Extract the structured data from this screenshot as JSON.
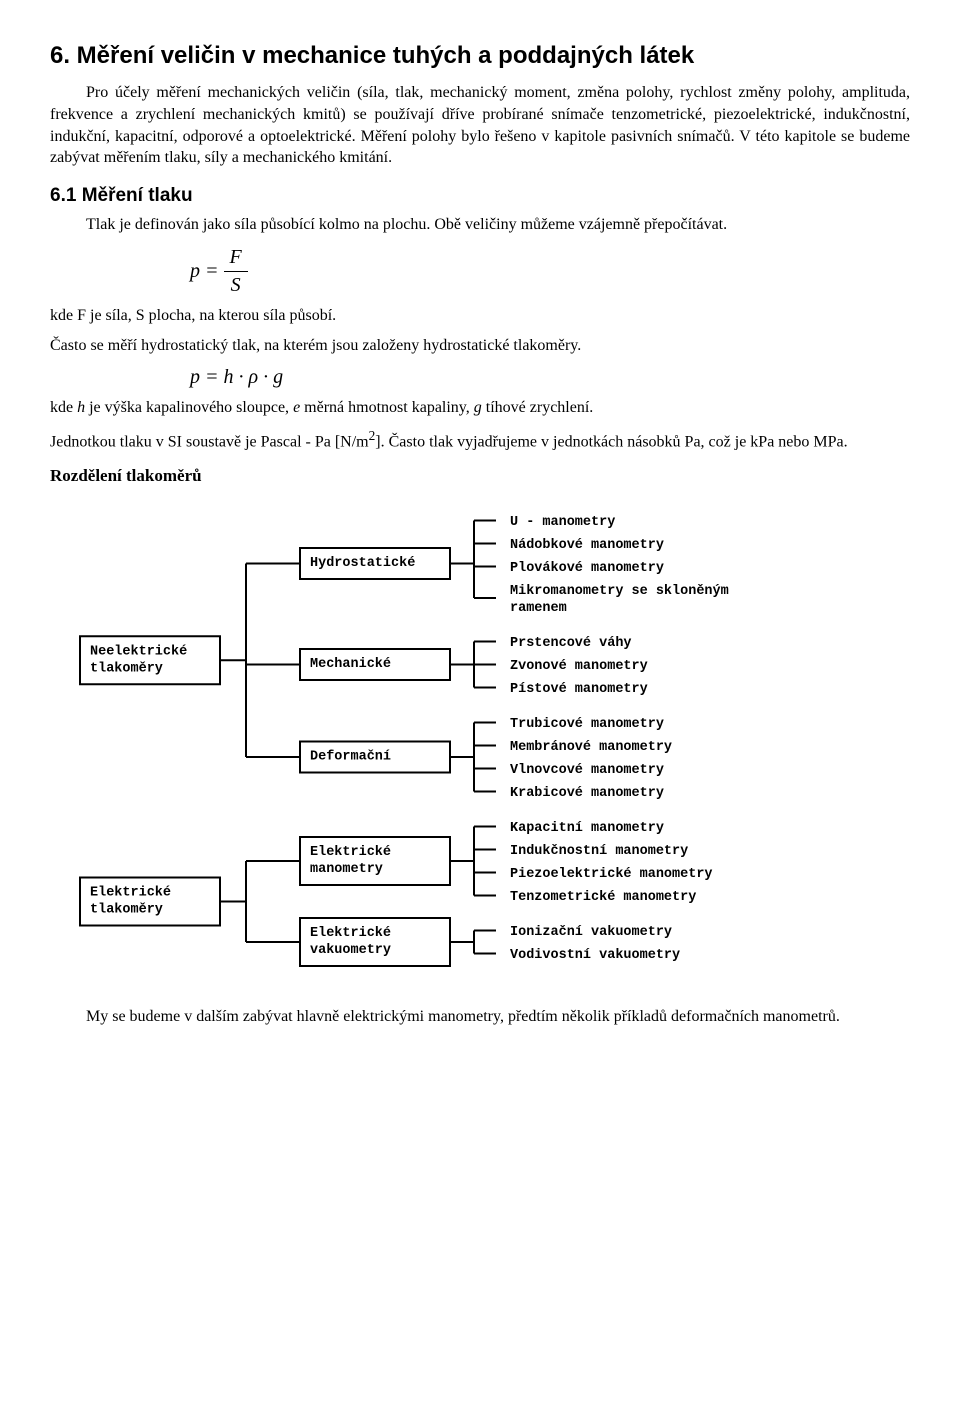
{
  "title": "6. Měření veličin v mechanice tuhých a poddajných látek",
  "para1": "Pro účely měření mechanických veličin (síla, tlak, mechanický moment, změna polohy, rychlost změny polohy, amplituda, frekvence a zrychlení mechanických kmitů) se používají dříve probírané snímače tenzometrické, piezoelektrické, indukčnostní, indukční, kapacitní, odporové a optoelektrické. Měření polohy bylo řešeno v kapitole pasivních snímačů. V této kapitole se budeme zabývat měřením tlaku, síly a mechanického kmitání.",
  "sec61": "6.1 Měření tlaku",
  "para2": "Tlak je definován jako síla působící kolmo na plochu. Obě veličiny můžeme vzájemně přepočítávat.",
  "formula1_html": "<span style='display:inline-block;vertical-align:middle;'>p</span> <span style='display:inline-block;vertical-align:middle;'>=</span> <span style='display:inline-block;vertical-align:middle;text-align:center;'><span style='display:block;border-bottom:1.4px solid #000;padding:0 6px;'>F</span><span style='display:block;padding:0 6px;'>S</span></span>",
  "para3": "kde F je síla, S plocha, na kterou síla působí.",
  "para4": "Často se měří hydrostatický tlak, na kterém jsou založeny hydrostatické tlakoměry.",
  "formula2": "p = h · ρ · g",
  "para5_pre": "kde ",
  "para5_h": "h",
  "para5_mid1": " je výška kapalinového sloupce, ",
  "para5_e": "e",
  "para5_mid2": " měrná hmotnost kapaliny, ",
  "para5_g": "g",
  "para5_end": " tíhové zrychlení.",
  "para6_pre": "Jednotkou tlaku v SI soustavě je Pascal - Pa  [N/m",
  "para6_sup": "2",
  "para6_post": "]. Často tlak vyjadřujeme v jednotkách násobků Pa, což je kPa nebo MPa.",
  "h3": "Rozdělení tlakoměrů",
  "para7": "My se budeme v dalším zabývat hlavně elektrickými manometry,  předtím několik příkladů deformačních manometrů.",
  "diagram": {
    "left": [
      {
        "label": "Neelektrické\ntlakoměry",
        "targets": [
          0,
          1,
          2
        ]
      },
      {
        "label": "Elektrické\ntlakoměry",
        "targets": [
          3,
          4
        ]
      }
    ],
    "mid": [
      {
        "label": "Hydrostatické",
        "leaves": [
          "U - manometry",
          "Nádobkové manometry",
          "Plovákové manometry",
          "Mikromanometry se skloněným\nramenem"
        ]
      },
      {
        "label": "Mechanické",
        "leaves": [
          "Prstencové váhy",
          "Zvonové manometry",
          "Pístové manometry"
        ]
      },
      {
        "label": "Deformační",
        "leaves": [
          "Trubicové manometry",
          "Membránové manometry",
          "Vlnovcové manometry",
          "Krabicové manometry"
        ]
      },
      {
        "label": "Elektrické\nmanometry",
        "leaves": [
          "Kapacitní manometry",
          "Indukčnostní manometry",
          "Piezoelektrické manometry",
          "Tenzometrické manometry"
        ]
      },
      {
        "label": "Elektrické\nvakuometry",
        "leaves": [
          "Ionizační vakuometry",
          "Vodivostní vakuometry"
        ]
      }
    ]
  }
}
